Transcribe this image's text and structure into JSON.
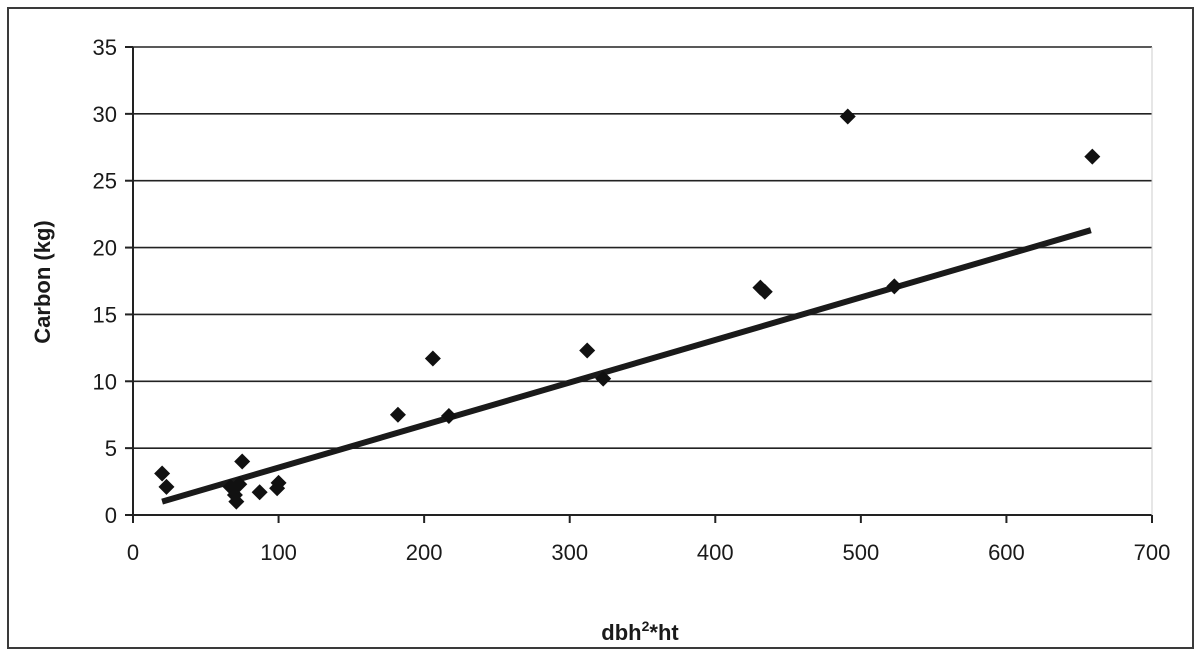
{
  "chart_data": {
    "type": "scatter",
    "xlabel": "dbh",
    "xlabel_superscript": "2",
    "xlabel_suffix": "*ht",
    "ylabel": "Carbon (kg)",
    "xlim": [
      0,
      700
    ],
    "ylim": [
      0,
      35
    ],
    "x_ticks": [
      0,
      100,
      200,
      300,
      400,
      500,
      600,
      700
    ],
    "y_ticks": [
      0,
      5,
      10,
      15,
      20,
      25,
      30,
      35
    ],
    "grid": "horizontal",
    "marker": "diamond",
    "points": [
      {
        "x": 20,
        "y": 3.1
      },
      {
        "x": 23,
        "y": 2.1
      },
      {
        "x": 67,
        "y": 2.1
      },
      {
        "x": 70,
        "y": 1.5
      },
      {
        "x": 71,
        "y": 1.0
      },
      {
        "x": 73,
        "y": 2.3
      },
      {
        "x": 75,
        "y": 4.0
      },
      {
        "x": 87,
        "y": 1.7
      },
      {
        "x": 99,
        "y": 2.0
      },
      {
        "x": 100,
        "y": 2.4
      },
      {
        "x": 182,
        "y": 7.5
      },
      {
        "x": 206,
        "y": 11.7
      },
      {
        "x": 217,
        "y": 7.4
      },
      {
        "x": 312,
        "y": 12.3
      },
      {
        "x": 323,
        "y": 10.2
      },
      {
        "x": 431,
        "y": 17.0
      },
      {
        "x": 434,
        "y": 16.7
      },
      {
        "x": 491,
        "y": 29.8
      },
      {
        "x": 523,
        "y": 17.1
      },
      {
        "x": 659,
        "y": 26.8
      }
    ],
    "trendline": {
      "x": [
        20,
        658
      ],
      "y": [
        1.0,
        21.3
      ]
    }
  }
}
